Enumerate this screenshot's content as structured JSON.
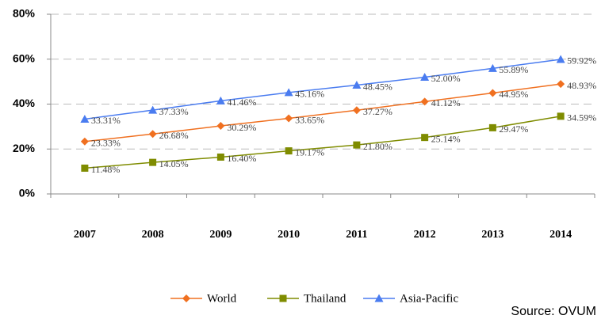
{
  "chart_data": {
    "type": "line",
    "categories": [
      "2007",
      "2008",
      "2009",
      "2010",
      "2011",
      "2012",
      "2013",
      "2014"
    ],
    "series": [
      {
        "name": "World",
        "color": "#f07020",
        "marker": "diamond",
        "values": [
          23.33,
          26.68,
          30.29,
          33.65,
          37.27,
          41.12,
          44.95,
          48.93
        ],
        "value_labels": [
          "23.33%",
          "26.68%",
          "30.29%",
          "33.65%",
          "37.27%",
          "41.12%",
          "44.95%",
          "48.93%"
        ]
      },
      {
        "name": "Thailand",
        "color": "#7f8c00",
        "marker": "square",
        "values": [
          11.48,
          14.05,
          16.4,
          19.17,
          21.8,
          25.14,
          29.47,
          34.59
        ],
        "value_labels": [
          "11.48%",
          "14.05%",
          "16.40%",
          "19.17%",
          "21.80%",
          "25.14%",
          "29.47%",
          "34.59%"
        ]
      },
      {
        "name": "Asia-Pacific",
        "color": "#4a7cf0",
        "marker": "triangle",
        "values": [
          33.31,
          37.33,
          41.46,
          45.16,
          48.45,
          52.0,
          55.89,
          59.92
        ],
        "value_labels": [
          "33.31%",
          "37.33%",
          "41.46%",
          "45.16%",
          "48.45%",
          "52.00%",
          "55.89%",
          "59.92%"
        ]
      }
    ],
    "ylim": [
      0,
      80
    ],
    "yticks": [
      {
        "value": 0,
        "label": "0%"
      },
      {
        "value": 20,
        "label": "20%"
      },
      {
        "value": 40,
        "label": "40%"
      },
      {
        "value": 60,
        "label": "60%"
      },
      {
        "value": 80,
        "label": "80%"
      }
    ],
    "grid": true,
    "legend": "bottom",
    "source": "Source: OVUM"
  }
}
